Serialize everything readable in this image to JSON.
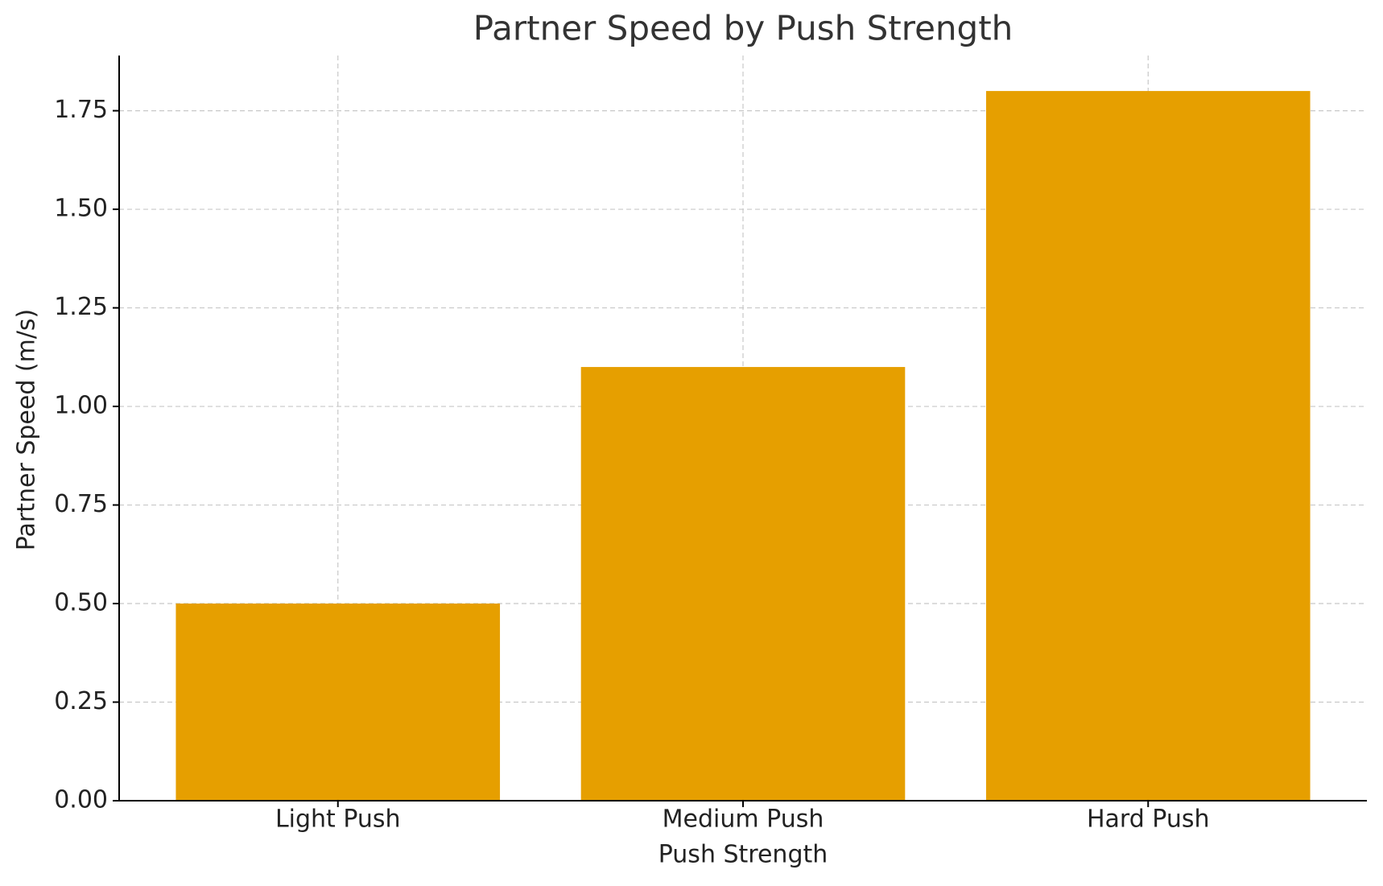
{
  "chart_data": {
    "type": "bar",
    "title": "Partner Speed by Push Strength",
    "x_label": "Push Strength",
    "y_label": "Partner Speed (m/s)",
    "categories": [
      "Light Push",
      "Medium Push",
      "Hard Push"
    ],
    "values": [
      0.5,
      1.1,
      1.8
    ],
    "color": "#e69f00",
    "ylim": [
      0,
      1.89
    ],
    "yticks": [
      {
        "value": 0,
        "label": "0.00"
      },
      {
        "value": 0.25,
        "label": "0.25"
      },
      {
        "value": 0.5,
        "label": "0.50"
      },
      {
        "value": 0.75,
        "label": "0.75"
      },
      {
        "value": 1,
        "label": "1.00"
      },
      {
        "value": 1.25,
        "label": "1.25"
      },
      {
        "value": 1.5,
        "label": "1.50"
      },
      {
        "value": 1.75,
        "label": "1.75"
      }
    ],
    "grid": true
  }
}
